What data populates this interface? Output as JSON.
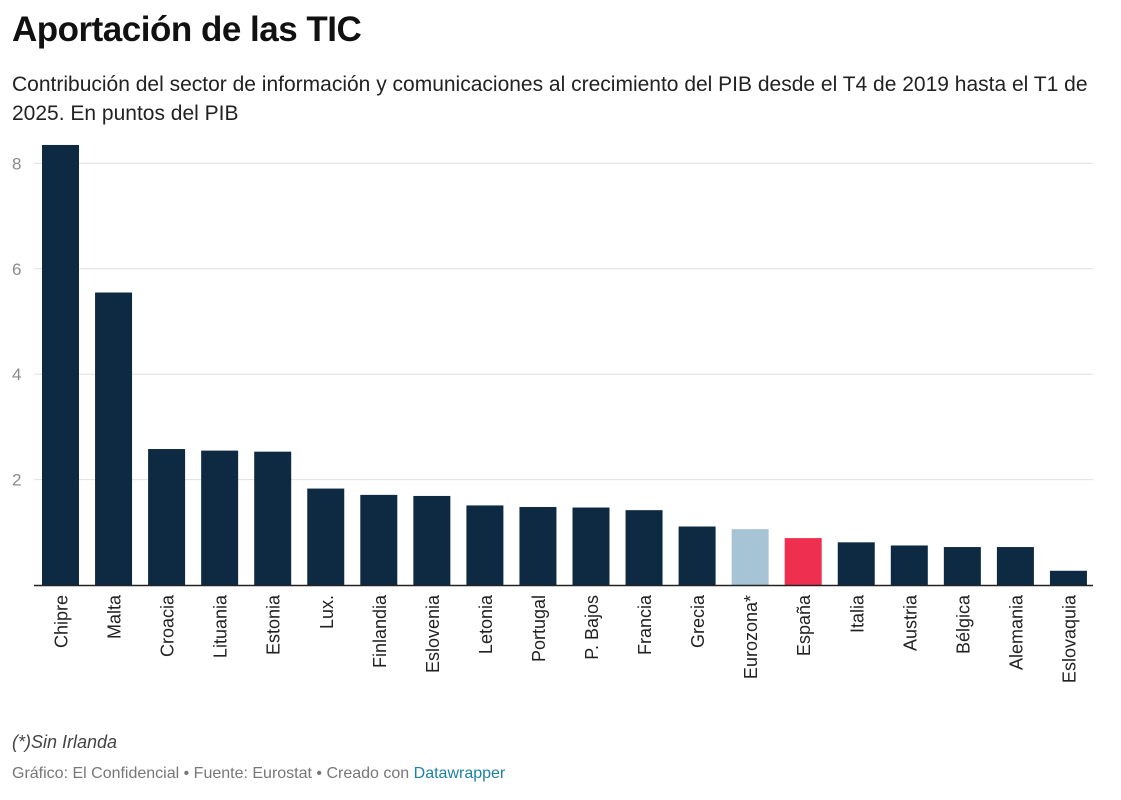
{
  "title": "Aportación de las TIC",
  "subtitle": "Contribución del sector de información y comunicaciones al crecimiento del PIB desde el T4 de 2019 hasta el T1 de 2025. En puntos del PIB",
  "note": "(*)Sin Irlanda",
  "footer": {
    "prefix": "Gráfico: El Confidencial • Fuente: Eurostat • Creado con",
    "link_label": "Datawrapper"
  },
  "colors": {
    "bar": "#0e2a42",
    "eurozone": "#a7c3d6",
    "spain": "#ef2f4f"
  },
  "chart_data": {
    "type": "bar",
    "categories": [
      "Chipre",
      "Malta",
      "Croacia",
      "Lituania",
      "Estonia",
      "Lux.",
      "Finlandia",
      "Eslovenia",
      "Letonia",
      "Portugal",
      "P. Bajos",
      "Francia",
      "Grecia",
      "Eurozona*",
      "España",
      "Italia",
      "Austria",
      "Bélgica",
      "Alemania",
      "Eslovaquia"
    ],
    "values": [
      8.35,
      5.55,
      2.58,
      2.55,
      2.53,
      1.83,
      1.71,
      1.69,
      1.51,
      1.48,
      1.47,
      1.42,
      1.11,
      1.06,
      0.89,
      0.81,
      0.75,
      0.72,
      0.72,
      0.27
    ],
    "highlight": {
      "Eurozona*": "eurozone",
      "España": "spain"
    },
    "ylim": [
      0,
      8
    ],
    "yticks": [
      2,
      4,
      6,
      8
    ],
    "grid": true,
    "xlabel": "",
    "ylabel": ""
  }
}
